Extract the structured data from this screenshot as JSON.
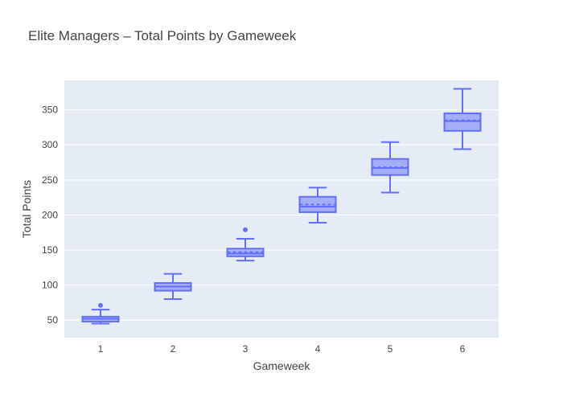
{
  "chart_data": {
    "type": "box",
    "title": "Elite Managers – Total Points by Gameweek",
    "xlabel": "Gameweek",
    "ylabel": "Total Points",
    "ylim": [
      25,
      392
    ],
    "y_ticks": [
      50,
      100,
      150,
      200,
      250,
      300,
      350
    ],
    "categories": [
      "1",
      "2",
      "3",
      "4",
      "5",
      "6"
    ],
    "show_mean": true,
    "grid": true,
    "colors": {
      "plot_background": "#e5ecf6",
      "grid": "#ffffff",
      "box_line": "#636efa",
      "box_fill": "rgba(99,110,250,0.5)",
      "text": "#444444"
    },
    "boxes": [
      {
        "x": "1",
        "min": 45,
        "q1": 48,
        "median": 52,
        "q3": 55,
        "max": 65,
        "mean": 52,
        "outliers": [
          71
        ]
      },
      {
        "x": "2",
        "min": 80,
        "q1": 92,
        "median": 98,
        "q3": 103,
        "max": 116,
        "mean": 98,
        "outliers": []
      },
      {
        "x": "3",
        "min": 135,
        "q1": 141,
        "median": 145,
        "q3": 152,
        "max": 166,
        "mean": 147,
        "outliers": [
          179
        ]
      },
      {
        "x": "4",
        "min": 189,
        "q1": 204,
        "median": 212,
        "q3": 226,
        "max": 239,
        "mean": 215,
        "outliers": []
      },
      {
        "x": "5",
        "min": 232,
        "q1": 257,
        "median": 267,
        "q3": 280,
        "max": 304,
        "mean": 268,
        "outliers": []
      },
      {
        "x": "6",
        "min": 294,
        "q1": 320,
        "median": 334,
        "q3": 345,
        "max": 380,
        "mean": 335,
        "outliers": []
      }
    ]
  }
}
